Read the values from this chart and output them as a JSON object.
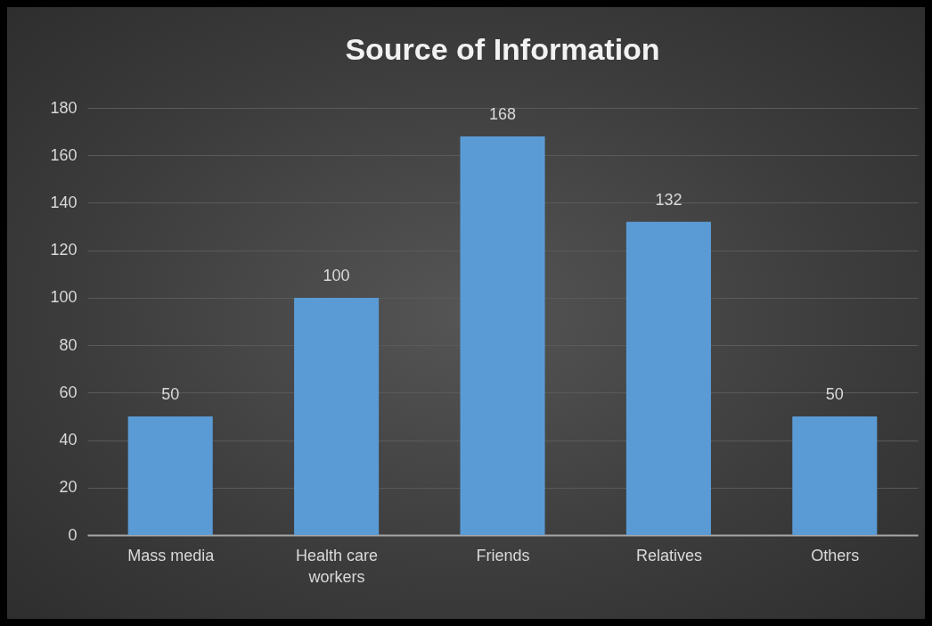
{
  "chart_data": {
    "type": "bar",
    "title": "Source of Information",
    "categories": [
      "Mass media",
      "Health care workers",
      "Friends",
      "Relatives",
      "Others"
    ],
    "values": [
      50,
      100,
      168,
      132,
      50
    ],
    "color": "#5b9bd5",
    "ylim": [
      0,
      180
    ],
    "yticks": [
      0,
      20,
      40,
      60,
      80,
      100,
      120,
      140,
      160,
      180
    ],
    "grid": "y",
    "data_labels": true
  }
}
